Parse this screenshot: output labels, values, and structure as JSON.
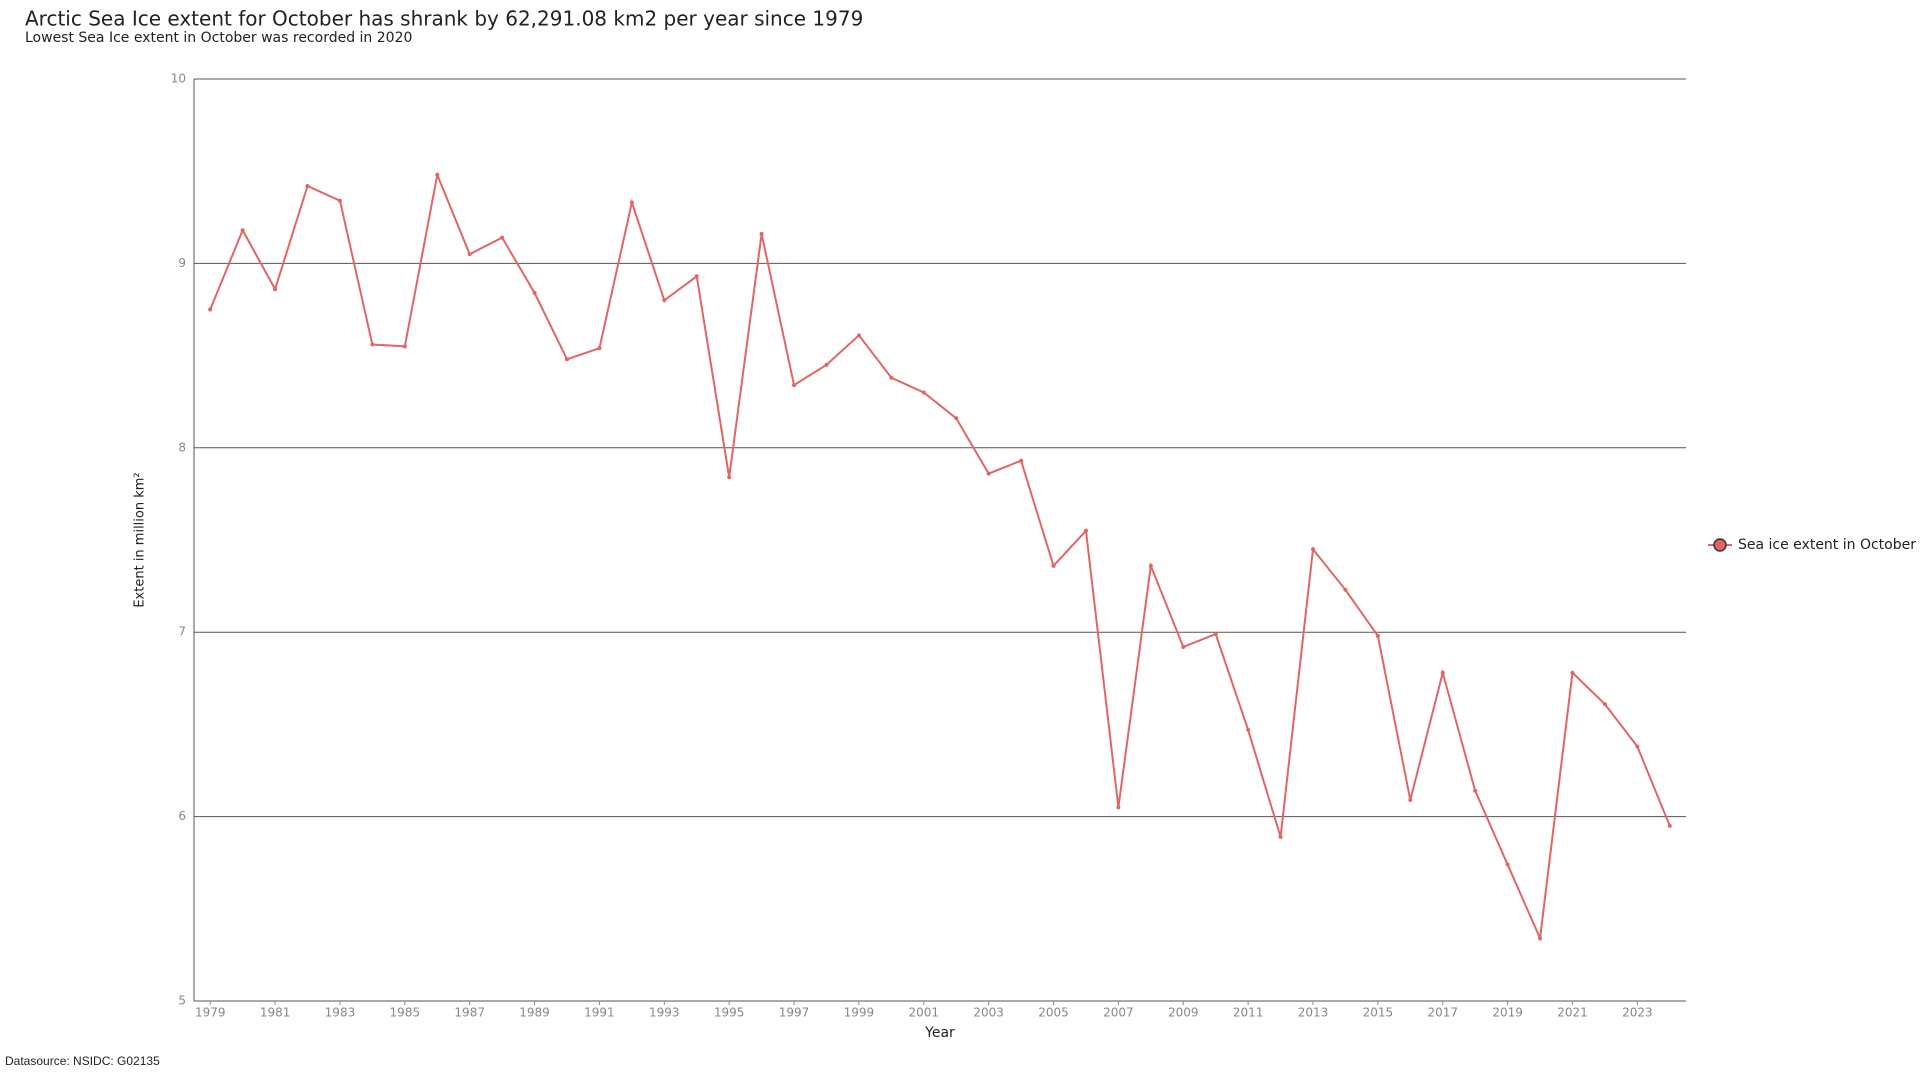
{
  "chart_data": {
    "type": "line",
    "title": "Arctic Sea Ice extent for October has shrank by 62,291.08 km2 per year since 1979",
    "subtitle": "Lowest Sea Ice extent in October was recorded in 2020",
    "xlabel": "Year",
    "ylabel": "Extent in million km²",
    "source": "Datasource: NSIDC: G02135",
    "x": [
      1979,
      1980,
      1981,
      1982,
      1983,
      1984,
      1985,
      1986,
      1987,
      1988,
      1989,
      1990,
      1991,
      1992,
      1993,
      1994,
      1995,
      1996,
      1997,
      1998,
      1999,
      2000,
      2001,
      2002,
      2003,
      2004,
      2005,
      2006,
      2007,
      2008,
      2009,
      2010,
      2011,
      2012,
      2013,
      2014,
      2015,
      2016,
      2017,
      2018,
      2019,
      2020,
      2021,
      2022,
      2023,
      2024
    ],
    "series": [
      {
        "name": "Sea ice extent in October",
        "color": "#e06666",
        "values": [
          8.75,
          9.18,
          8.86,
          9.42,
          9.34,
          8.56,
          8.55,
          9.48,
          9.05,
          9.14,
          8.84,
          8.48,
          8.54,
          9.33,
          8.8,
          8.93,
          7.84,
          9.16,
          8.34,
          8.45,
          8.61,
          8.38,
          8.3,
          8.16,
          7.86,
          7.93,
          7.36,
          7.55,
          6.05,
          7.36,
          6.92,
          6.99,
          6.47,
          5.89,
          7.45,
          7.23,
          6.98,
          6.09,
          6.78,
          6.14,
          5.74,
          5.34,
          6.78,
          6.61,
          6.38,
          5.95
        ]
      }
    ],
    "xlim": [
      1978.5,
      2024.5
    ],
    "xticks": [
      1979,
      1981,
      1983,
      1985,
      1987,
      1989,
      1991,
      1993,
      1995,
      1997,
      1999,
      2001,
      2003,
      2005,
      2007,
      2009,
      2011,
      2013,
      2015,
      2017,
      2019,
      2021,
      2023
    ],
    "ylim": [
      5,
      10
    ],
    "yticks": [
      5,
      6,
      7,
      8,
      9,
      10
    ],
    "grid": true,
    "legend": "right"
  }
}
